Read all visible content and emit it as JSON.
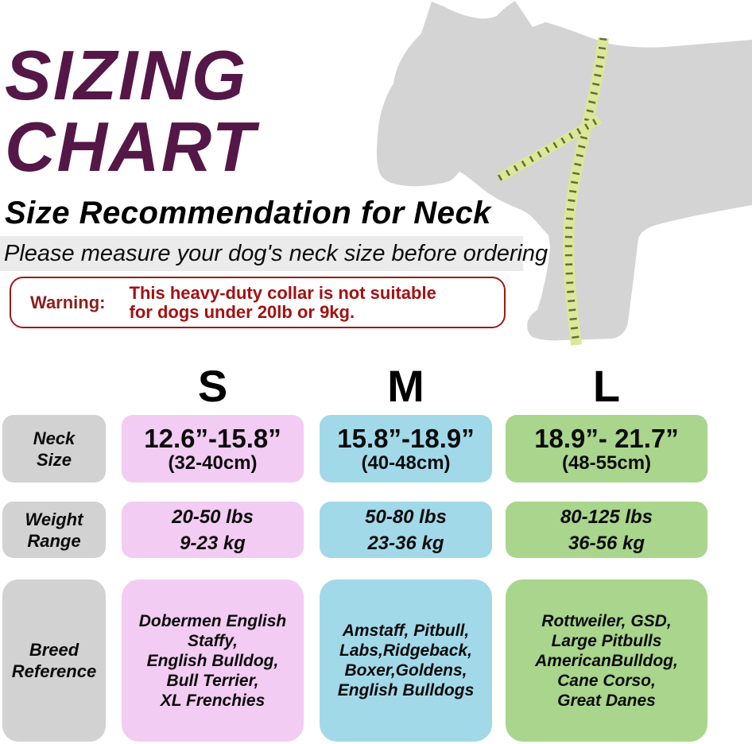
{
  "header": {
    "title_lines": [
      "SIZING",
      "CHART"
    ],
    "subtitle": "Size Recommendation for Neck",
    "note": "Please measure your dog's neck size before ordering"
  },
  "warning": {
    "label": "Warning:",
    "text_lines": [
      "This heavy-duty collar is not suitable",
      "for dogs under 20lb or 9kg."
    ]
  },
  "illustration": {
    "name": "dog-silhouette-with-measuring-tape"
  },
  "sizes": {
    "headers": [
      "S",
      "M",
      "L"
    ]
  },
  "table": {
    "row_labels": [
      {
        "lines": [
          "Neck",
          "Size"
        ]
      },
      {
        "lines": [
          "Weight",
          "Range"
        ]
      },
      {
        "lines": [
          "Breed",
          "Reference"
        ]
      }
    ],
    "neck": {
      "s": {
        "value": "12.6”-15.8”",
        "sub": "(32-40cm)"
      },
      "m": {
        "value": "15.8”-18.9”",
        "sub": "(40-48cm)"
      },
      "l": {
        "value": "18.9”- 21.7”",
        "sub": "(48-55cm)"
      }
    },
    "weight": {
      "s": {
        "lines": [
          "20-50 lbs",
          "9-23 kg"
        ]
      },
      "m": {
        "lines": [
          "50-80 lbs",
          "23-36 kg"
        ]
      },
      "l": {
        "lines": [
          "80-125 lbs",
          "36-56 kg"
        ]
      }
    },
    "breed": {
      "s": {
        "lines": [
          "Dobermen English",
          "Staffy,",
          "English Bulldog,",
          "Bull Terrier,",
          "XL Frenchies"
        ]
      },
      "m": {
        "lines": [
          "Amstaff, Pitbull,",
          "Labs,Ridgeback,",
          "Boxer,Goldens,",
          "English Bulldogs"
        ]
      },
      "l": {
        "lines": [
          "Rottweiler, GSD,",
          "Large Pitbulls",
          "AmericanBulldog,",
          "Cane Corso,",
          "Great Danes"
        ]
      }
    }
  },
  "colors": {
    "title_purple": "#551747",
    "warning_red": "#a31111",
    "warning_border": "#9a1a1a",
    "size_s_bg": "#f2ccf2",
    "size_m_bg": "#a2d9e9",
    "size_l_bg": "#a9d58c",
    "row_label_bg": "#d2d2d2",
    "note_band_bg": "#ebebeb",
    "dog_gray": "#d4d4d4",
    "tape_green": "#dce79a"
  },
  "chart_data": {
    "type": "table",
    "title": "SIZING CHART — Size Recommendation for Neck",
    "columns": [
      "",
      "S",
      "M",
      "L"
    ],
    "rows": [
      [
        "Neck Size",
        "12.6”-15.8” (32-40cm)",
        "15.8”-18.9” (40-48cm)",
        "18.9”- 21.7” (48-55cm)"
      ],
      [
        "Weight Range",
        "20-50 lbs / 9-23 kg",
        "50-80 lbs / 23-36 kg",
        "80-125 lbs / 36-56 kg"
      ],
      [
        "Breed Reference",
        "Dobermen English Staffy, English Bulldog, Bull Terrier, XL Frenchies",
        "Amstaff, Pitbull, Labs, Ridgeback, Boxer, Goldens, English Bulldogs",
        "Rottweiler, GSD, Large Pitbulls, AmericanBulldog, Cane Corso, Great Danes"
      ]
    ]
  }
}
